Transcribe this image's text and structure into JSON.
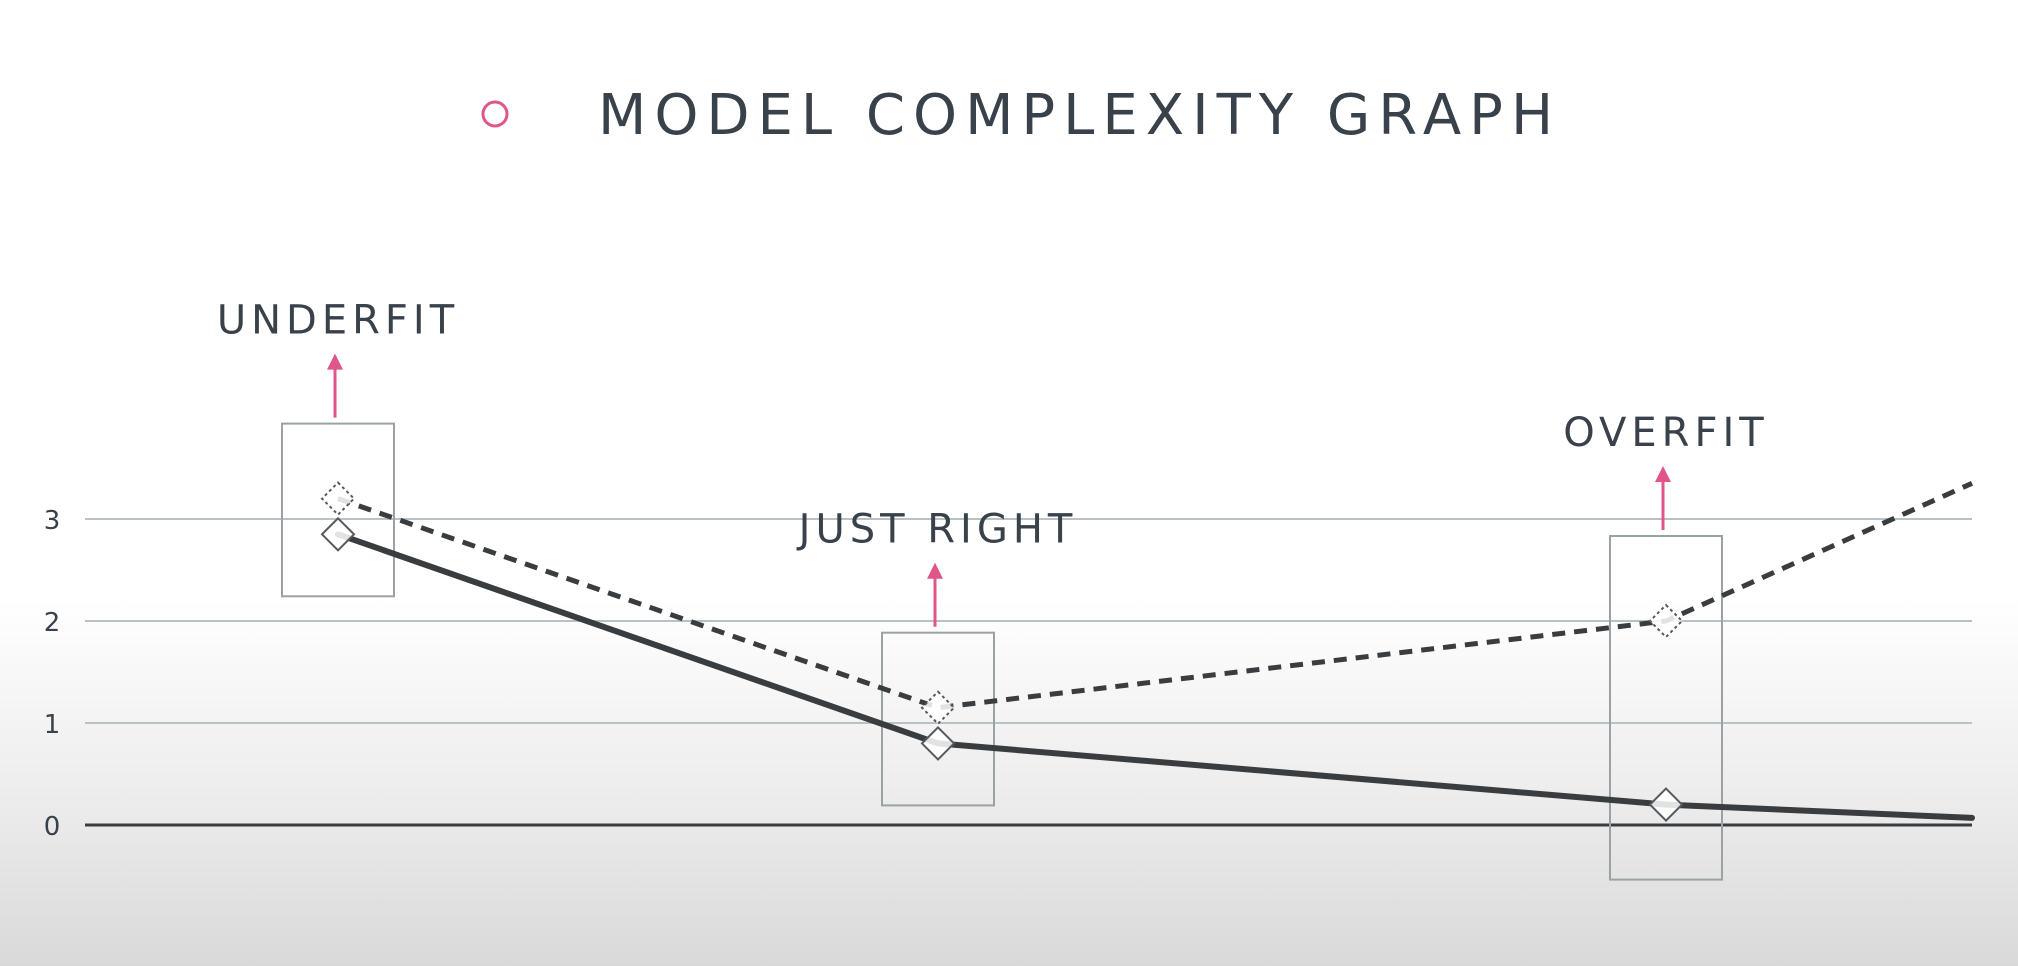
{
  "chart_data": {
    "type": "line",
    "title": "MODEL COMPLEXITY GRAPH",
    "xlabel": "",
    "ylabel": "",
    "ylim": [
      0,
      3.4
    ],
    "yticks": [
      "0",
      "1",
      "2",
      "3"
    ],
    "grid": true,
    "x": [
      1,
      2,
      3,
      4
    ],
    "series": [
      {
        "style": "solid",
        "values": [
          2.85,
          0.8,
          0.2,
          0.07
        ],
        "markers": [
          true,
          true,
          true,
          false
        ]
      },
      {
        "style": "dashed",
        "values": [
          3.2,
          1.15,
          2.0,
          3.35
        ],
        "markers": [
          true,
          true,
          true,
          false
        ]
      }
    ],
    "annotations": [
      {
        "label": "UNDERFIT",
        "x": 1
      },
      {
        "label": "JUST RIGHT",
        "x": 2
      },
      {
        "label": "OVERFIT",
        "x": 3
      }
    ],
    "colors": {
      "text": "#39414a",
      "line": "#3a3d40",
      "grid": "#b9c2c2",
      "box": "#9aa3a3",
      "accent": "#e0558a"
    }
  }
}
